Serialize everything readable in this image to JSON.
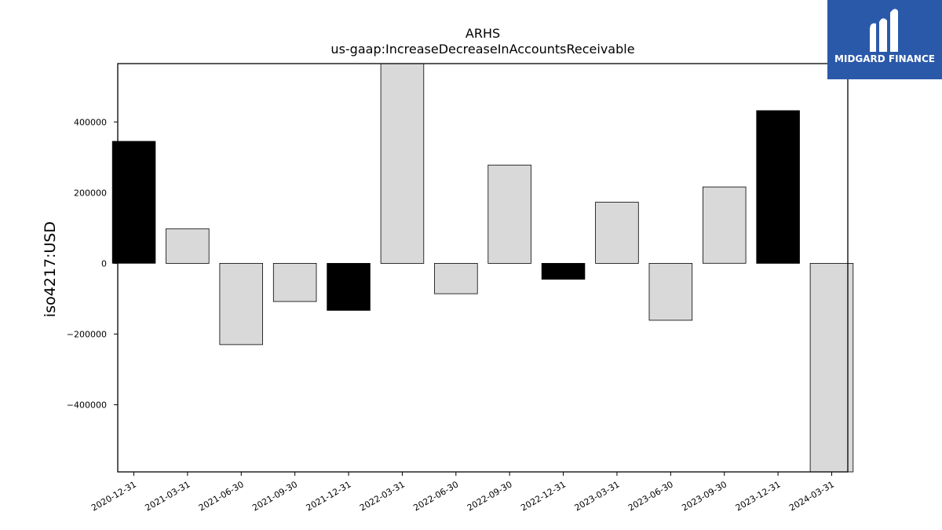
{
  "logo": {
    "text": "MIDGARD FINANCE",
    "icon": "midgard-m-icon",
    "background": "#2b59aa"
  },
  "chart_data": {
    "type": "bar",
    "title": "ARHS",
    "subtitle": "us-gaap:IncreaseDecreaseInAccountsReceivable",
    "xlabel": "",
    "ylabel": "iso4217:USD",
    "categories": [
      "2020-12-31",
      "2021-03-31",
      "2021-06-30",
      "2021-09-30",
      "2021-12-31",
      "2022-03-31",
      "2022-06-30",
      "2022-09-30",
      "2022-12-31",
      "2023-03-31",
      "2023-06-30",
      "2023-09-30",
      "2023-12-31",
      "2024-03-31"
    ],
    "values": [
      345000,
      98000,
      -230000,
      -108000,
      -133000,
      565000,
      -86000,
      278000,
      -45000,
      173000,
      -161000,
      216000,
      432000,
      -590000
    ],
    "bar_colors": [
      "#000000",
      "#d9d9d9",
      "#d9d9d9",
      "#d9d9d9",
      "#000000",
      "#d9d9d9",
      "#d9d9d9",
      "#d9d9d9",
      "#000000",
      "#d9d9d9",
      "#d9d9d9",
      "#d9d9d9",
      "#000000",
      "#d9d9d9"
    ],
    "ylim": [
      -590000,
      565000
    ],
    "yticks": [
      -400000,
      -200000,
      0,
      200000,
      400000
    ],
    "ytick_labels": [
      "−400000",
      "−200000",
      "0",
      "200000",
      "400000"
    ],
    "grid": false,
    "legend": "none"
  }
}
